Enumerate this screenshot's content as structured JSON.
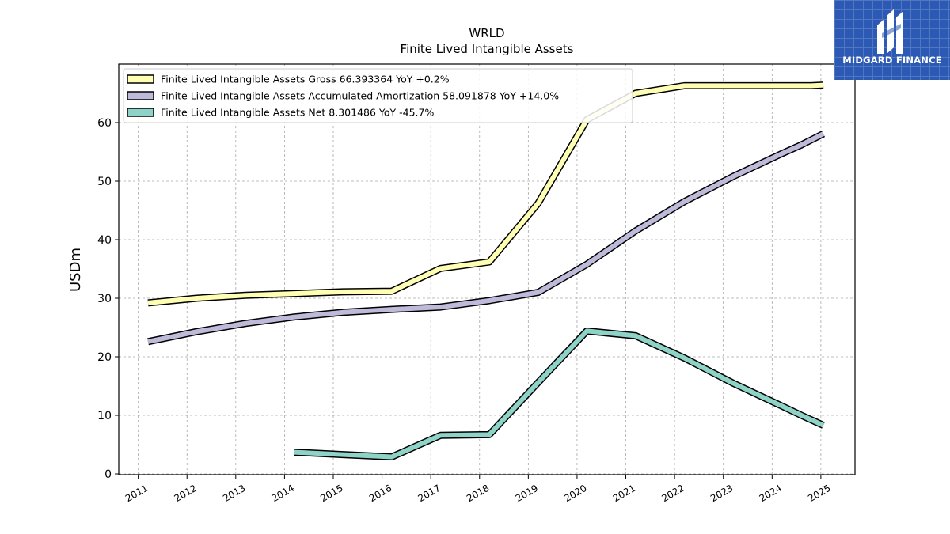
{
  "chart_data": {
    "type": "line",
    "title": "WRLD",
    "subtitle": "Finite Lived Intangible Assets",
    "xlabel": "",
    "ylabel": "USDm",
    "ylim": [
      0,
      70
    ],
    "xlim": [
      2010.6,
      2025.7
    ],
    "yticks": [
      0,
      10,
      20,
      30,
      40,
      50,
      60
    ],
    "xticks": [
      2011,
      2012,
      2013,
      2014,
      2015,
      2016,
      2017,
      2018,
      2019,
      2020,
      2021,
      2022,
      2023,
      2024,
      2025
    ],
    "grid": true,
    "legend_position": "top-left",
    "series": [
      {
        "name": "Finite Lived Intangible Assets Gross",
        "legend": "Finite Lived Intangible Assets Gross  66.393364 YoY +0.2%",
        "color": "#ffffb3",
        "x": [
          2011.2,
          2012.2,
          2013.2,
          2014.2,
          2015.2,
          2016.2,
          2017.2,
          2018.2,
          2019.2,
          2020.2,
          2021.2,
          2022.2,
          2023.2,
          2024.2,
          2024.8,
          2025.05
        ],
        "y": [
          29.2,
          30.0,
          30.5,
          30.8,
          31.1,
          31.2,
          35.1,
          36.2,
          46.2,
          60.5,
          65.0,
          66.3,
          66.3,
          66.3,
          66.3,
          66.4
        ]
      },
      {
        "name": "Finite Lived Intangible Assets Accumulated Amortization",
        "legend": "Finite Lived Intangible Assets Accumulated Amortization  58.091878 YoY +14.0%",
        "color": "#bebada",
        "x": [
          2011.2,
          2012.2,
          2013.2,
          2014.2,
          2015.2,
          2016.2,
          2017.2,
          2018.2,
          2019.2,
          2020.2,
          2021.2,
          2022.2,
          2023.2,
          2024.2,
          2024.6,
          2025.05
        ],
        "y": [
          22.6,
          24.3,
          25.7,
          26.8,
          27.6,
          28.1,
          28.5,
          29.6,
          31.0,
          35.8,
          41.5,
          46.5,
          50.8,
          54.7,
          56.2,
          58.1
        ]
      },
      {
        "name": "Finite Lived Intangible Assets Net",
        "legend": "Finite Lived Intangible Assets Net  8.301486 YoY -45.7%",
        "color": "#8dd3c7",
        "x": [
          2014.2,
          2015.2,
          2016.2,
          2017.2,
          2018.2,
          2019.2,
          2020.2,
          2021.2,
          2022.2,
          2023.2,
          2024.2,
          2024.6,
          2025.05
        ],
        "y": [
          3.7,
          3.3,
          2.9,
          6.6,
          6.7,
          15.6,
          24.4,
          23.6,
          19.8,
          15.5,
          11.6,
          10.0,
          8.3
        ]
      }
    ]
  },
  "logo": {
    "text": "MIDGARD FINANCE",
    "background": "#2b59b4"
  }
}
